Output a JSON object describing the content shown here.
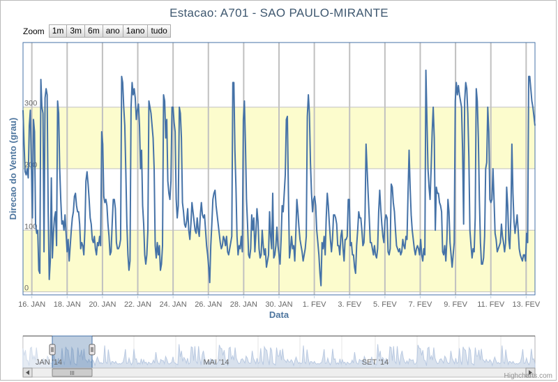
{
  "title": "Estacao: A701 - SAO PAULO-MIRANTE",
  "zoom": {
    "label": "Zoom",
    "buttons": [
      "1m",
      "3m",
      "6m",
      "ano",
      "1ano",
      "tudo"
    ]
  },
  "credits": "Highcharts.com",
  "navigator": {
    "labels": [
      "JAN '14",
      "MAI '14",
      "SET '14"
    ],
    "scroll_grip": "III"
  },
  "colors": {
    "series": "#4572a7",
    "band": "#fcfccd",
    "title": "#3e576f",
    "axis_title": "#4d759e",
    "navigator_fill": "#c8d4e6"
  },
  "chart_data": {
    "type": "line",
    "title": "Estacao: A701 - SAO PAULO-MIRANTE",
    "xlabel": "Data",
    "ylabel": "Direcao do Vento (grau)",
    "x_ticks": [
      "16. JAN",
      "18. JAN",
      "20. JAN",
      "22. JAN",
      "24. JAN",
      "26. JAN",
      "28. JAN",
      "30. JAN",
      "1. FEV",
      "3. FEV",
      "5. FEV",
      "7. FEV",
      "9. FEV",
      "11. FEV",
      "13. FEV"
    ],
    "y_ticks": [
      0,
      100,
      200,
      300
    ],
    "ylim": [
      -5,
      405
    ],
    "xlim": [
      "2014-01-15 12:00",
      "2014-02-13 12:00"
    ],
    "plot_bands": [
      [
        0,
        100
      ],
      [
        200,
        300
      ]
    ],
    "grid": true,
    "series": [
      {
        "values": [
          295,
          240,
          195,
          190,
          200,
          185,
          270,
          295,
          205,
          120,
          280,
          260,
          110,
          95,
          100,
          35,
          30,
          345,
          300,
          290,
          65,
          315,
          330,
          320,
          130,
          20,
          50,
          185,
          55,
          95,
          120,
          130,
          75,
          310,
          290,
          200,
          150,
          110,
          115,
          100,
          125,
          95,
          65,
          85,
          50,
          75,
          100,
          120,
          130,
          155,
          160,
          140,
          130,
          130,
          110,
          70,
          80,
          75,
          60,
          100,
          180,
          195,
          175,
          150,
          120,
          110,
          85,
          80,
          90,
          70,
          60,
          80,
          75,
          90,
          75,
          260,
          240,
          155,
          145,
          150,
          140,
          110,
          90,
          60,
          65,
          110,
          150,
          150,
          135,
          80,
          70,
          70,
          75,
          85,
          350,
          340,
          300,
          270,
          195,
          110,
          60,
          35,
          50,
          300,
          340,
          320,
          330,
          315,
          280,
          295,
          305,
          270,
          200,
          230,
          140,
          110,
          60,
          45,
          60,
          100,
          310,
          300,
          290,
          270,
          250,
          200,
          75,
          55,
          80,
          60,
          75,
          35,
          45,
          75,
          320,
          310,
          250,
          280,
          180,
          160,
          150,
          180,
          300,
          300,
          275,
          260,
          150,
          120,
          140,
          300,
          290,
          250,
          145,
          130,
          110,
          105,
          115,
          135,
          100,
          85,
          110,
          145,
          130,
          115,
          100,
          95,
          120,
          100,
          90,
          125,
          145,
          125,
          120,
          125,
          100,
          75,
          60,
          40,
          15,
          75,
          110,
          150,
          160,
          165,
          140,
          125,
          110,
          95,
          80,
          70,
          75,
          90,
          85,
          75,
          90,
          65,
          60,
          70,
          80,
          90,
          340,
          340,
          230,
          170,
          90,
          60,
          75,
          70,
          90,
          65,
          280,
          310,
          240,
          150,
          110,
          60,
          55,
          70,
          125,
          100,
          120,
          65,
          95,
          135,
          115,
          70,
          55,
          60,
          100,
          75,
          60,
          70,
          40,
          50,
          60,
          130,
          90,
          70,
          160,
          55,
          60,
          75,
          105,
          75,
          60,
          45,
          85,
          140,
          130,
          160,
          190,
          280,
          285,
          160,
          55,
          70,
          90,
          70,
          75,
          50,
          95,
          150,
          130,
          105,
          85,
          75,
          65,
          50,
          60,
          70,
          90,
          285,
          320,
          290,
          210,
          160,
          130,
          150,
          155,
          140,
          100,
          80,
          60,
          30,
          10,
          80,
          70,
          90,
          60,
          120,
          160,
          140,
          110,
          85,
          65,
          85,
          125,
          125,
          120,
          110,
          75,
          75,
          60,
          90,
          100,
          70,
          50,
          85,
          85,
          90,
          150,
          150,
          75,
          80,
          60,
          60,
          40,
          30,
          75,
          100,
          130,
          120,
          120,
          100,
          75,
          80,
          120,
          240,
          200,
          160,
          120,
          80,
          80,
          70,
          60,
          75,
          60,
          55,
          70,
          130,
          165,
          135,
          110,
          90,
          80,
          115,
          125,
          120,
          65,
          60,
          70,
          175,
          170,
          145,
          130,
          100,
          75,
          70,
          65,
          70,
          60,
          65,
          85,
          75,
          70,
          90,
          85,
          160,
          230,
          170,
          125,
          100,
          85,
          70,
          60,
          70,
          75,
          70,
          60,
          85,
          60,
          50,
          70,
          60,
          360,
          280,
          200,
          170,
          150,
          200,
          260,
          300,
          250,
          100,
          170,
          160,
          160,
          145,
          140,
          130,
          65,
          60,
          75,
          50,
          85,
          150,
          130,
          80,
          60,
          40,
          60,
          80,
          310,
          340,
          320,
          335,
          320,
          310,
          300,
          230,
          110,
          310,
          340,
          330,
          290,
          220,
          100,
          75,
          55,
          70,
          65,
          120,
          330,
          310,
          250,
          150,
          80,
          45,
          45,
          55,
          90,
          200,
          210,
          300,
          260,
          150,
          145,
          150,
          200,
          150,
          95,
          85,
          65,
          70,
          75,
          80,
          110,
          90,
          80,
          65,
          80,
          170,
          140,
          85,
          70,
          120,
          240,
          160,
          115,
          95,
          110,
          125,
          100,
          70,
          60,
          55,
          50,
          60,
          60,
          50,
          95,
          80,
          350,
          350,
          330,
          310,
          300,
          285,
          270
        ]
      }
    ]
  }
}
